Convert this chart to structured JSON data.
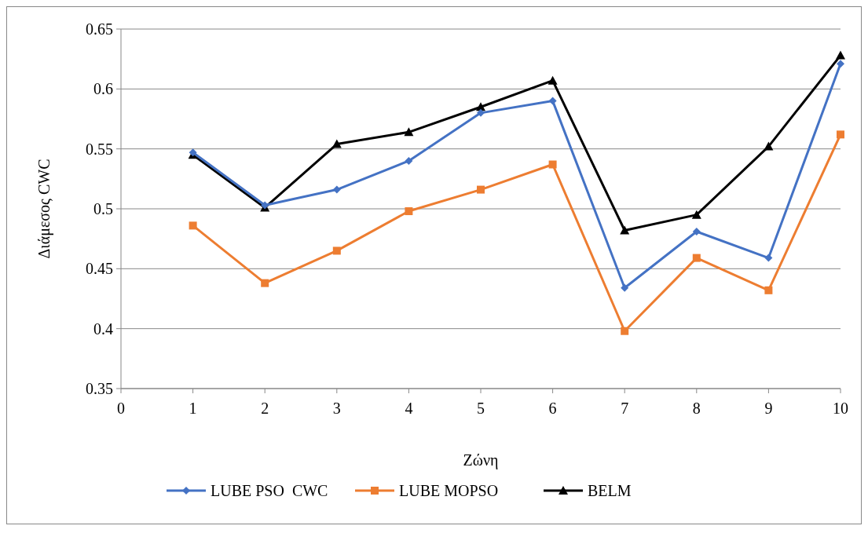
{
  "chart_data": {
    "type": "line",
    "xlabel": "Ζώνη",
    "ylabel": "Διάμεσος CWC",
    "x": [
      1,
      2,
      3,
      4,
      5,
      6,
      7,
      8,
      9,
      10
    ],
    "xlim": [
      0,
      10
    ],
    "xticks": [
      0,
      1,
      2,
      3,
      4,
      5,
      6,
      7,
      8,
      9,
      10
    ],
    "ylim": [
      0.35,
      0.65
    ],
    "yticks": [
      0.35,
      0.4,
      0.45,
      0.5,
      0.55,
      0.6,
      0.65
    ],
    "grid": "y",
    "legend": "bottom",
    "series": [
      {
        "name": "LUBE PSO  CWC",
        "color": "#4472c4",
        "marker": "diamond",
        "values": [
          0.547,
          0.503,
          0.516,
          0.54,
          0.58,
          0.59,
          0.434,
          0.481,
          0.459,
          0.621
        ]
      },
      {
        "name": "LUBE MOPSO",
        "color": "#ed7d31",
        "marker": "square",
        "values": [
          0.486,
          0.438,
          0.465,
          0.498,
          0.516,
          0.537,
          0.398,
          0.459,
          0.432,
          0.562
        ]
      },
      {
        "name": "BELM",
        "color": "#000000",
        "marker": "triangle",
        "values": [
          0.545,
          0.501,
          0.554,
          0.564,
          0.585,
          0.607,
          0.482,
          0.495,
          0.552,
          0.628
        ]
      }
    ]
  }
}
